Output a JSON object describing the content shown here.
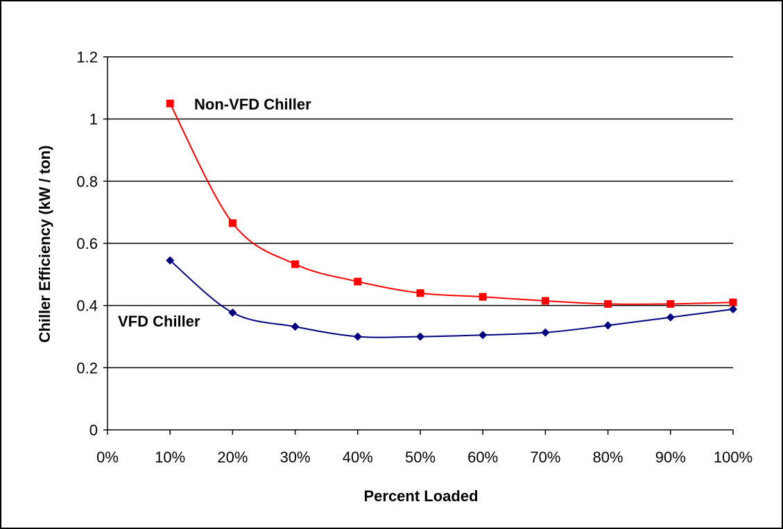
{
  "chart_data": {
    "type": "line",
    "title": "",
    "xlabel": "Percent Loaded",
    "ylabel": "Chiller Efficiency (kW / ton)",
    "x_ticks": [
      "0%",
      "10%",
      "20%",
      "30%",
      "40%",
      "50%",
      "60%",
      "70%",
      "80%",
      "90%",
      "100%"
    ],
    "y_ticks": [
      "0",
      "0.2",
      "0.4",
      "0.6",
      "0.8",
      "1",
      "1.2"
    ],
    "xlim": [
      0,
      100
    ],
    "ylim": [
      0,
      1.2
    ],
    "grid": "horizontal",
    "x": [
      10,
      20,
      30,
      40,
      50,
      60,
      70,
      80,
      90,
      100
    ],
    "series": [
      {
        "name": "Non-VFD Chiller",
        "color": "#ff0000",
        "marker": "square",
        "values": [
          1.05,
          0.665,
          0.533,
          0.477,
          0.44,
          0.428,
          0.415,
          0.405,
          0.405,
          0.41
        ]
      },
      {
        "name": "VFD Chiller",
        "color": "#000080",
        "marker": "diamond",
        "values": [
          0.545,
          0.377,
          0.332,
          0.3,
          0.3,
          0.305,
          0.313,
          0.336,
          0.362,
          0.388
        ]
      }
    ]
  }
}
